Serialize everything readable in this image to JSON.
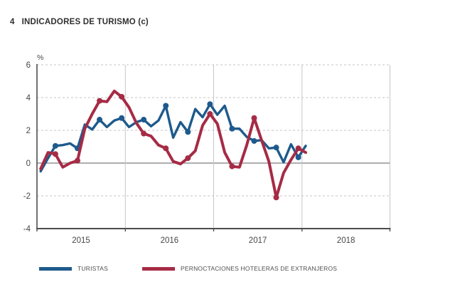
{
  "header": {
    "number": "4",
    "title": "INDICADORES DE TURISMO (c)"
  },
  "chart_data": {
    "type": "line",
    "title": "4 INDICADORES DE TURISMO (c)",
    "unit_label": "%",
    "ylim": [
      -4,
      6
    ],
    "y_ticks": [
      6,
      4,
      2,
      0,
      -2,
      -4
    ],
    "x_tick_labels": [
      "2015",
      "2016",
      "2017",
      "2018"
    ],
    "frequency": "monthly",
    "x_range": "Jan 2015 - Jan 2018",
    "grid": "horizontal dashed gridlines, solid zero line, solid vertical year separators",
    "legend_position": "bottom",
    "marker_indices": [
      2,
      5,
      8,
      11,
      14,
      17,
      20,
      23,
      26,
      29,
      32,
      35
    ],
    "series": [
      {
        "name": "TURISTAS",
        "color": "#1e5a8c",
        "values": [
          -0.5,
          0.3,
          1.05,
          1.1,
          1.2,
          0.9,
          2.35,
          2.05,
          2.65,
          2.2,
          2.6,
          2.75,
          2.2,
          2.5,
          2.65,
          2.25,
          2.6,
          3.5,
          1.55,
          2.5,
          1.9,
          3.3,
          2.8,
          3.6,
          2.95,
          3.5,
          2.1,
          2.1,
          1.6,
          1.35,
          1.4,
          0.9,
          0.95,
          0.05,
          1.15,
          0.35,
          1.05
        ]
      },
      {
        "name": "PERNOCTACIONES HOTELERAS DE EXTRANJEROS",
        "color": "#a62b45",
        "values": [
          -0.35,
          0.65,
          0.55,
          -0.25,
          0.0,
          0.15,
          2.1,
          3.0,
          3.8,
          3.75,
          4.4,
          4.05,
          3.4,
          2.45,
          1.8,
          1.65,
          1.1,
          0.9,
          0.1,
          -0.05,
          0.3,
          0.75,
          2.3,
          3.0,
          2.4,
          0.65,
          -0.2,
          -0.25,
          1.1,
          2.75,
          1.4,
          0.1,
          -2.1,
          -0.6,
          0.2,
          0.9,
          0.65
        ]
      }
    ],
    "colors": {
      "grid": "#c6c6c6",
      "zero_line": "#7d7d7d",
      "axis": "#4d4d4d",
      "tick_text": "#474747"
    }
  }
}
